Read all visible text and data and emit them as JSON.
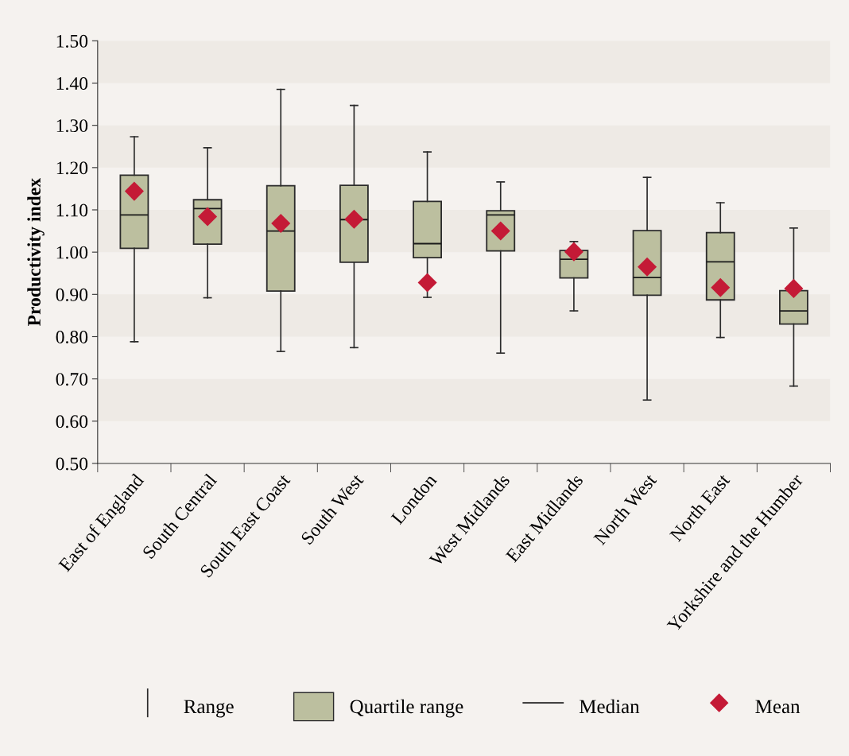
{
  "chart_data": {
    "type": "box",
    "ylabel": "Productivity index",
    "categories": [
      "East of England",
      "South Central",
      "South East Coast",
      "South West",
      "London",
      "West Midlands",
      "East Midlands",
      "North West",
      "North East",
      "Yorkshire and the Humber"
    ],
    "series": [
      {
        "name": "Quartile range",
        "color": "#bcbf9f",
        "boxes": [
          {
            "low": 0.788,
            "q1": 1.009,
            "median": 1.088,
            "q3": 1.182,
            "high": 1.273
          },
          {
            "low": 0.892,
            "q1": 1.019,
            "median": 1.103,
            "q3": 1.124,
            "high": 1.247
          },
          {
            "low": 0.765,
            "q1": 0.908,
            "median": 1.05,
            "q3": 1.157,
            "high": 1.385
          },
          {
            "low": 0.774,
            "q1": 0.976,
            "median": 1.077,
            "q3": 1.158,
            "high": 1.347
          },
          {
            "low": 0.893,
            "q1": 0.987,
            "median": 1.02,
            "q3": 1.12,
            "high": 1.237
          },
          {
            "low": 0.761,
            "q1": 1.003,
            "median": 1.088,
            "q3": 1.098,
            "high": 1.166
          },
          {
            "low": 0.861,
            "q1": 0.939,
            "median": 0.983,
            "q3": 1.004,
            "high": 1.025
          },
          {
            "low": 0.65,
            "q1": 0.898,
            "median": 0.94,
            "q3": 1.051,
            "high": 1.177
          },
          {
            "low": 0.798,
            "q1": 0.887,
            "median": 0.977,
            "q3": 1.046,
            "high": 1.117
          },
          {
            "low": 0.683,
            "q1": 0.83,
            "median": 0.861,
            "q3": 0.909,
            "high": 1.057
          }
        ]
      },
      {
        "name": "Mean",
        "type": "scatter",
        "color": "#c41a36",
        "marker": "diamond",
        "x": [
          "East of England",
          "South Central",
          "South East Coast",
          "South West",
          "London",
          "West Midlands",
          "East Midlands",
          "North West",
          "North East",
          "Yorkshire and the Humber"
        ],
        "values": [
          1.144,
          1.084,
          1.068,
          1.078,
          0.928,
          1.05,
          1.001,
          0.965,
          0.916,
          0.914
        ]
      }
    ],
    "annotations": [
      "Range",
      "Median"
    ],
    "ylim": [
      0.5,
      1.5
    ],
    "yticks": [
      {
        "value": 0.5,
        "label": "0.50"
      },
      {
        "value": 0.6,
        "label": "0.60"
      },
      {
        "value": 0.7,
        "label": "0.70"
      },
      {
        "value": 0.8,
        "label": "0.80"
      },
      {
        "value": 0.9,
        "label": "0.90"
      },
      {
        "value": 1.0,
        "label": "1.00"
      },
      {
        "value": 1.1,
        "label": "1.10"
      },
      {
        "value": 1.2,
        "label": "1.20"
      },
      {
        "value": 1.3,
        "label": "1.30"
      },
      {
        "value": 1.4,
        "label": "1.40"
      },
      {
        "value": 1.5,
        "label": "1.50"
      }
    ],
    "bands": [
      {
        "axis": "y",
        "from": 0.6,
        "to": 0.7,
        "color": "#eeeae5"
      },
      {
        "axis": "y",
        "from": 0.8,
        "to": 0.9,
        "color": "#eeeae5"
      },
      {
        "axis": "y",
        "from": 1.0,
        "to": 1.1,
        "color": "#eeeae5"
      },
      {
        "axis": "y",
        "from": 1.2,
        "to": 1.3,
        "color": "#eeeae5"
      },
      {
        "axis": "y",
        "from": 1.4,
        "to": 1.5,
        "color": "#eeeae5"
      }
    ],
    "grid": false,
    "legend": "bottom"
  }
}
